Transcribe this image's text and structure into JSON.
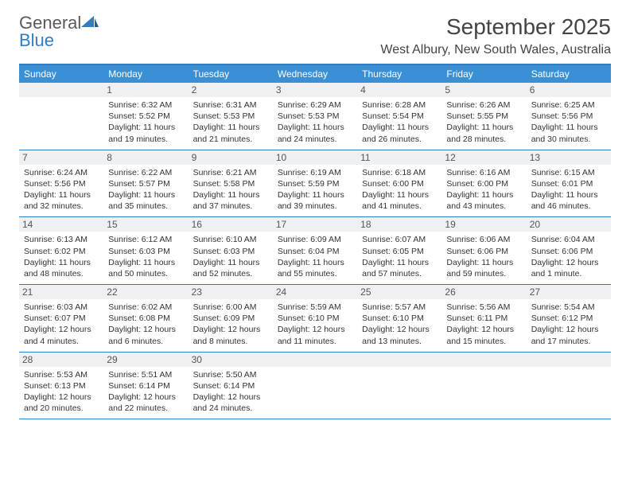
{
  "logo": {
    "text1": "General",
    "text2": "Blue"
  },
  "title": "September 2025",
  "location": "West Albury, New South Wales, Australia",
  "colors": {
    "header_bar": "#3b8fd4",
    "border": "#2f7ec2",
    "daynum_bg": "#eef0f2",
    "text": "#333333",
    "logo_gray": "#5a5a5a",
    "logo_blue": "#2f7ec2"
  },
  "days_of_week": [
    "Sunday",
    "Monday",
    "Tuesday",
    "Wednesday",
    "Thursday",
    "Friday",
    "Saturday"
  ],
  "weeks": [
    [
      {
        "n": "",
        "sunrise": "",
        "sunset": "",
        "daylight": ""
      },
      {
        "n": "1",
        "sunrise": "Sunrise: 6:32 AM",
        "sunset": "Sunset: 5:52 PM",
        "daylight": "Daylight: 11 hours and 19 minutes."
      },
      {
        "n": "2",
        "sunrise": "Sunrise: 6:31 AM",
        "sunset": "Sunset: 5:53 PM",
        "daylight": "Daylight: 11 hours and 21 minutes."
      },
      {
        "n": "3",
        "sunrise": "Sunrise: 6:29 AM",
        "sunset": "Sunset: 5:53 PM",
        "daylight": "Daylight: 11 hours and 24 minutes."
      },
      {
        "n": "4",
        "sunrise": "Sunrise: 6:28 AM",
        "sunset": "Sunset: 5:54 PM",
        "daylight": "Daylight: 11 hours and 26 minutes."
      },
      {
        "n": "5",
        "sunrise": "Sunrise: 6:26 AM",
        "sunset": "Sunset: 5:55 PM",
        "daylight": "Daylight: 11 hours and 28 minutes."
      },
      {
        "n": "6",
        "sunrise": "Sunrise: 6:25 AM",
        "sunset": "Sunset: 5:56 PM",
        "daylight": "Daylight: 11 hours and 30 minutes."
      }
    ],
    [
      {
        "n": "7",
        "sunrise": "Sunrise: 6:24 AM",
        "sunset": "Sunset: 5:56 PM",
        "daylight": "Daylight: 11 hours and 32 minutes."
      },
      {
        "n": "8",
        "sunrise": "Sunrise: 6:22 AM",
        "sunset": "Sunset: 5:57 PM",
        "daylight": "Daylight: 11 hours and 35 minutes."
      },
      {
        "n": "9",
        "sunrise": "Sunrise: 6:21 AM",
        "sunset": "Sunset: 5:58 PM",
        "daylight": "Daylight: 11 hours and 37 minutes."
      },
      {
        "n": "10",
        "sunrise": "Sunrise: 6:19 AM",
        "sunset": "Sunset: 5:59 PM",
        "daylight": "Daylight: 11 hours and 39 minutes."
      },
      {
        "n": "11",
        "sunrise": "Sunrise: 6:18 AM",
        "sunset": "Sunset: 6:00 PM",
        "daylight": "Daylight: 11 hours and 41 minutes."
      },
      {
        "n": "12",
        "sunrise": "Sunrise: 6:16 AM",
        "sunset": "Sunset: 6:00 PM",
        "daylight": "Daylight: 11 hours and 43 minutes."
      },
      {
        "n": "13",
        "sunrise": "Sunrise: 6:15 AM",
        "sunset": "Sunset: 6:01 PM",
        "daylight": "Daylight: 11 hours and 46 minutes."
      }
    ],
    [
      {
        "n": "14",
        "sunrise": "Sunrise: 6:13 AM",
        "sunset": "Sunset: 6:02 PM",
        "daylight": "Daylight: 11 hours and 48 minutes."
      },
      {
        "n": "15",
        "sunrise": "Sunrise: 6:12 AM",
        "sunset": "Sunset: 6:03 PM",
        "daylight": "Daylight: 11 hours and 50 minutes."
      },
      {
        "n": "16",
        "sunrise": "Sunrise: 6:10 AM",
        "sunset": "Sunset: 6:03 PM",
        "daylight": "Daylight: 11 hours and 52 minutes."
      },
      {
        "n": "17",
        "sunrise": "Sunrise: 6:09 AM",
        "sunset": "Sunset: 6:04 PM",
        "daylight": "Daylight: 11 hours and 55 minutes."
      },
      {
        "n": "18",
        "sunrise": "Sunrise: 6:07 AM",
        "sunset": "Sunset: 6:05 PM",
        "daylight": "Daylight: 11 hours and 57 minutes."
      },
      {
        "n": "19",
        "sunrise": "Sunrise: 6:06 AM",
        "sunset": "Sunset: 6:06 PM",
        "daylight": "Daylight: 11 hours and 59 minutes."
      },
      {
        "n": "20",
        "sunrise": "Sunrise: 6:04 AM",
        "sunset": "Sunset: 6:06 PM",
        "daylight": "Daylight: 12 hours and 1 minute."
      }
    ],
    [
      {
        "n": "21",
        "sunrise": "Sunrise: 6:03 AM",
        "sunset": "Sunset: 6:07 PM",
        "daylight": "Daylight: 12 hours and 4 minutes."
      },
      {
        "n": "22",
        "sunrise": "Sunrise: 6:02 AM",
        "sunset": "Sunset: 6:08 PM",
        "daylight": "Daylight: 12 hours and 6 minutes."
      },
      {
        "n": "23",
        "sunrise": "Sunrise: 6:00 AM",
        "sunset": "Sunset: 6:09 PM",
        "daylight": "Daylight: 12 hours and 8 minutes."
      },
      {
        "n": "24",
        "sunrise": "Sunrise: 5:59 AM",
        "sunset": "Sunset: 6:10 PM",
        "daylight": "Daylight: 12 hours and 11 minutes."
      },
      {
        "n": "25",
        "sunrise": "Sunrise: 5:57 AM",
        "sunset": "Sunset: 6:10 PM",
        "daylight": "Daylight: 12 hours and 13 minutes."
      },
      {
        "n": "26",
        "sunrise": "Sunrise: 5:56 AM",
        "sunset": "Sunset: 6:11 PM",
        "daylight": "Daylight: 12 hours and 15 minutes."
      },
      {
        "n": "27",
        "sunrise": "Sunrise: 5:54 AM",
        "sunset": "Sunset: 6:12 PM",
        "daylight": "Daylight: 12 hours and 17 minutes."
      }
    ],
    [
      {
        "n": "28",
        "sunrise": "Sunrise: 5:53 AM",
        "sunset": "Sunset: 6:13 PM",
        "daylight": "Daylight: 12 hours and 20 minutes."
      },
      {
        "n": "29",
        "sunrise": "Sunrise: 5:51 AM",
        "sunset": "Sunset: 6:14 PM",
        "daylight": "Daylight: 12 hours and 22 minutes."
      },
      {
        "n": "30",
        "sunrise": "Sunrise: 5:50 AM",
        "sunset": "Sunset: 6:14 PM",
        "daylight": "Daylight: 12 hours and 24 minutes."
      },
      {
        "n": "",
        "sunrise": "",
        "sunset": "",
        "daylight": ""
      },
      {
        "n": "",
        "sunrise": "",
        "sunset": "",
        "daylight": ""
      },
      {
        "n": "",
        "sunrise": "",
        "sunset": "",
        "daylight": ""
      },
      {
        "n": "",
        "sunrise": "",
        "sunset": "",
        "daylight": ""
      }
    ]
  ]
}
